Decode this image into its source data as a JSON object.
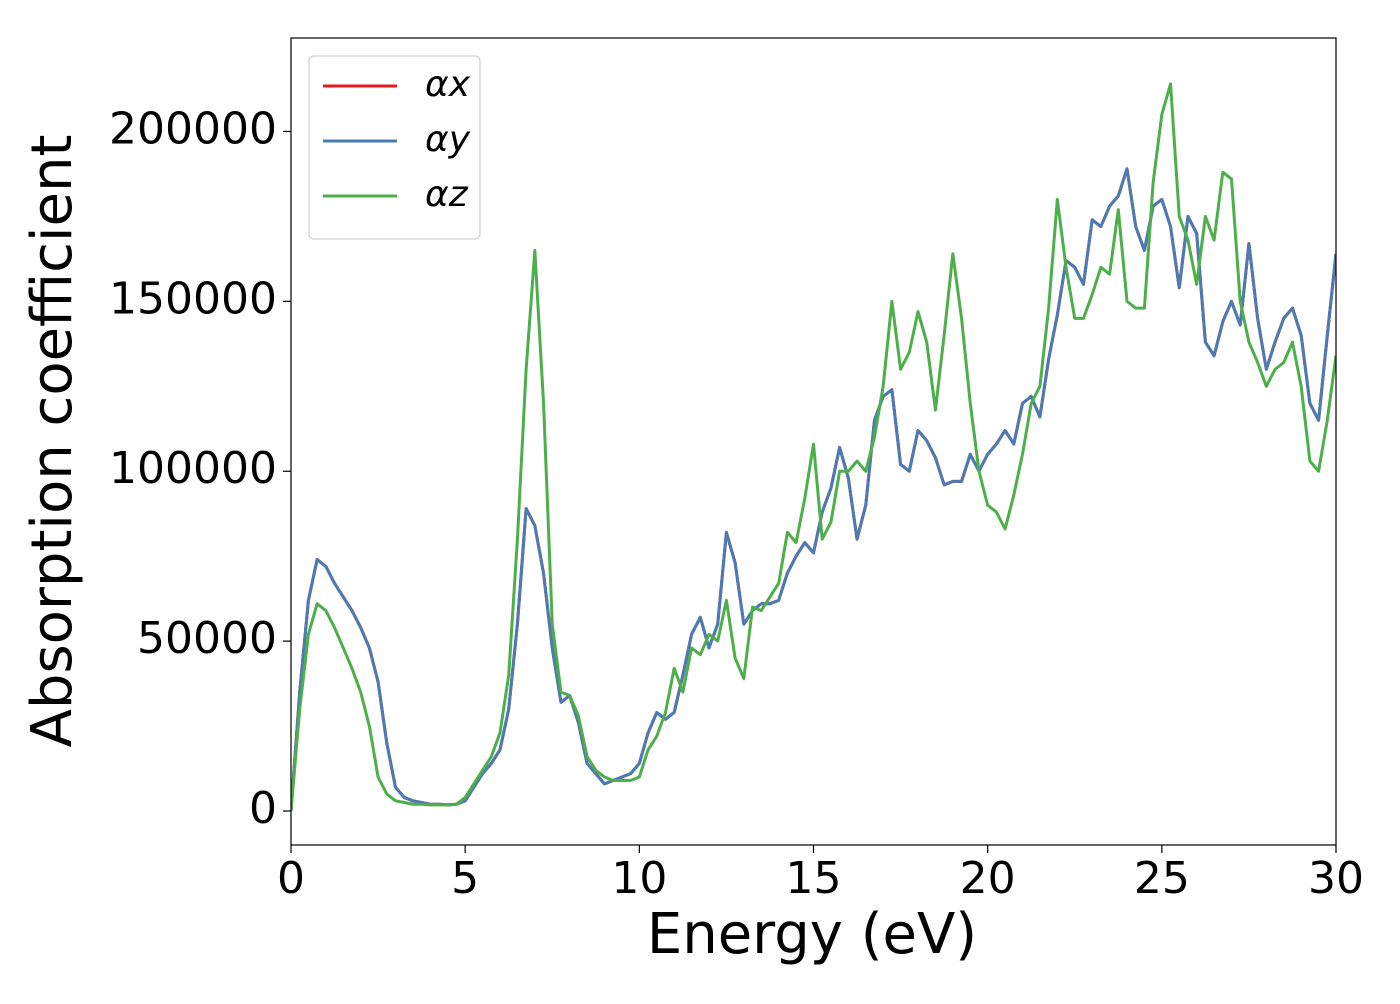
{
  "chart_data": {
    "type": "line",
    "xlabel": "Energy (eV)",
    "ylabel": "Absorption coefficient",
    "x": [
      0,
      0.25,
      0.5,
      0.75,
      1,
      1.25,
      1.5,
      1.75,
      2,
      2.25,
      2.5,
      2.75,
      3,
      3.25,
      3.5,
      3.75,
      4,
      4.25,
      4.5,
      4.75,
      5,
      5.25,
      5.5,
      5.75,
      6,
      6.25,
      6.5,
      6.75,
      7,
      7.25,
      7.5,
      7.75,
      8,
      8.25,
      8.5,
      8.75,
      9,
      9.25,
      9.5,
      9.75,
      10,
      10.25,
      10.5,
      10.75,
      11,
      11.25,
      11.5,
      11.75,
      12,
      12.25,
      12.5,
      12.75,
      13,
      13.25,
      13.5,
      13.75,
      14,
      14.25,
      14.5,
      14.75,
      15,
      15.25,
      15.5,
      15.75,
      16,
      16.25,
      16.5,
      16.75,
      17,
      17.25,
      17.5,
      17.75,
      18,
      18.25,
      18.5,
      18.75,
      19,
      19.25,
      19.5,
      19.75,
      20,
      20.25,
      20.5,
      20.75,
      21,
      21.25,
      21.5,
      21.75,
      22,
      22.25,
      22.5,
      22.75,
      23,
      23.25,
      23.5,
      23.75,
      24,
      24.25,
      24.5,
      24.75,
      25,
      25.25,
      25.5,
      25.75,
      26,
      26.25,
      26.5,
      26.75,
      27,
      27.25,
      27.5,
      27.75,
      28,
      28.25,
      28.5,
      28.75,
      29,
      29.25,
      29.5,
      29.75,
      30
    ],
    "series": [
      {
        "name": "αx",
        "color": "#e41a1c",
        "values": [
          0,
          35000,
          62000,
          74000,
          72000,
          67000,
          63000,
          59000,
          54000,
          48000,
          38000,
          20000,
          7000,
          4000,
          3000,
          2500,
          2000,
          2000,
          1800,
          2000,
          3000,
          7000,
          11000,
          14000,
          18000,
          30000,
          55000,
          89000,
          84000,
          70000,
          48000,
          32000,
          34000,
          26000,
          14000,
          11000,
          8000,
          9000,
          10000,
          11000,
          14000,
          23000,
          29000,
          27000,
          29000,
          40000,
          52000,
          57000,
          48000,
          55000,
          82000,
          73000,
          55000,
          59000,
          61000,
          61000,
          62000,
          70000,
          75000,
          79000,
          76000,
          88000,
          95000,
          107000,
          98000,
          80000,
          90000,
          115000,
          122000,
          124000,
          102000,
          100000,
          112000,
          109000,
          104000,
          96000,
          97000,
          97000,
          105000,
          100000,
          105000,
          108000,
          112000,
          108000,
          120000,
          122000,
          116000,
          133000,
          146000,
          162000,
          160000,
          155000,
          174000,
          172000,
          178000,
          181000,
          189000,
          172000,
          165000,
          178000,
          180000,
          172000,
          154000,
          175000,
          170000,
          138000,
          134000,
          144000,
          150000,
          143000,
          167000,
          145000,
          130000,
          138000,
          145000,
          148000,
          140000,
          120000,
          115000,
          140000,
          164000
        ]
      },
      {
        "name": "αy",
        "color": "#4a7bb5",
        "values": [
          0,
          35000,
          62000,
          74000,
          72000,
          67000,
          63000,
          59000,
          54000,
          48000,
          38000,
          20000,
          7000,
          4000,
          3000,
          2500,
          2000,
          2000,
          1800,
          2000,
          3000,
          7000,
          11000,
          14000,
          18000,
          30000,
          55000,
          89000,
          84000,
          70000,
          48000,
          32000,
          34000,
          26000,
          14000,
          11000,
          8000,
          9000,
          10000,
          11000,
          14000,
          23000,
          29000,
          27000,
          29000,
          40000,
          52000,
          57000,
          48000,
          55000,
          82000,
          73000,
          55000,
          59000,
          61000,
          61000,
          62000,
          70000,
          75000,
          79000,
          76000,
          88000,
          95000,
          107000,
          98000,
          80000,
          90000,
          115000,
          122000,
          124000,
          102000,
          100000,
          112000,
          109000,
          104000,
          96000,
          97000,
          97000,
          105000,
          100000,
          105000,
          108000,
          112000,
          108000,
          120000,
          122000,
          116000,
          133000,
          146000,
          162000,
          160000,
          155000,
          174000,
          172000,
          178000,
          181000,
          189000,
          172000,
          165000,
          178000,
          180000,
          172000,
          154000,
          175000,
          170000,
          138000,
          134000,
          144000,
          150000,
          143000,
          167000,
          145000,
          130000,
          138000,
          145000,
          148000,
          140000,
          120000,
          115000,
          140000,
          164000
        ]
      },
      {
        "name": "αz",
        "color": "#4daf4a",
        "values": [
          0,
          30000,
          52000,
          61000,
          59000,
          54000,
          48000,
          42000,
          35000,
          25000,
          10000,
          5000,
          3000,
          2500,
          2000,
          2000,
          1800,
          1800,
          1800,
          2000,
          4000,
          8000,
          12000,
          16000,
          23000,
          40000,
          80000,
          130000,
          165000,
          120000,
          55000,
          35000,
          34000,
          28000,
          16000,
          12000,
          10000,
          9000,
          9000,
          9000,
          10000,
          18000,
          22000,
          29000,
          42000,
          35000,
          48000,
          46000,
          52000,
          50000,
          62000,
          45000,
          39000,
          60000,
          59000,
          63000,
          67000,
          82000,
          79000,
          92000,
          108000,
          80000,
          85000,
          100000,
          100000,
          103000,
          100000,
          110000,
          125000,
          150000,
          130000,
          135000,
          147000,
          138000,
          118000,
          140000,
          164000,
          145000,
          120000,
          100000,
          90000,
          88000,
          83000,
          93000,
          105000,
          120000,
          125000,
          148000,
          180000,
          160000,
          145000,
          145000,
          152000,
          160000,
          158000,
          177000,
          150000,
          148000,
          148000,
          185000,
          205000,
          214000,
          175000,
          168000,
          155000,
          175000,
          168000,
          188000,
          186000,
          150000,
          138000,
          132000,
          125000,
          130000,
          132000,
          138000,
          125000,
          103000,
          100000,
          115000,
          134000
        ]
      }
    ],
    "xlim": [
      0,
      30
    ],
    "xticks": [
      0,
      5,
      10,
      15,
      20,
      25,
      30
    ],
    "ylim": [
      -10000,
      227500
    ],
    "yticks": [
      0,
      50000,
      100000,
      150000,
      200000
    ],
    "legend": "upper left"
  }
}
